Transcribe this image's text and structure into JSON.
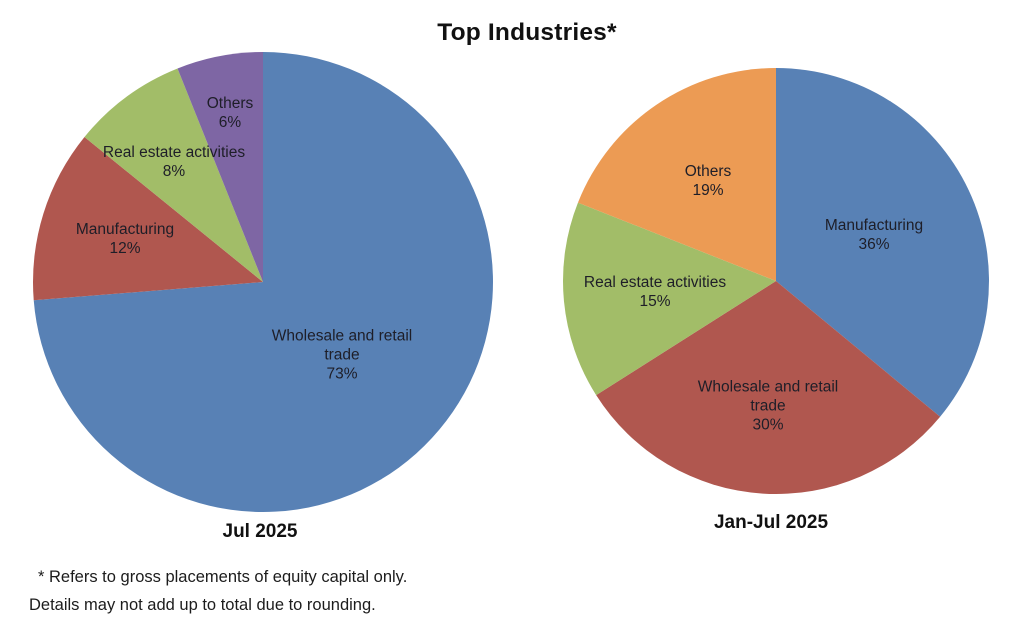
{
  "page": {
    "title": "Top Industries*",
    "footnote_line1": "* Refers to gross placements of equity capital only.",
    "footnote_line2": "Details may not add up to total due to rounding."
  },
  "colors": {
    "blue": "#5881B5",
    "red": "#B0574F",
    "green": "#A2BD68",
    "purple": "#7E66A4",
    "orange": "#EC9B54",
    "label_text": "#1e1e28",
    "title_text": "#111111"
  },
  "chart_data": [
    {
      "type": "pie",
      "title": "Jul 2025",
      "categories": [
        "Wholesale and retail trade",
        "Manufacturing",
        "Real estate activities",
        "Others"
      ],
      "values": [
        73,
        12,
        8,
        6
      ],
      "unit": "%",
      "colors": [
        "#5881B5",
        "#B0574F",
        "#A2BD68",
        "#7E66A4"
      ],
      "start_angle_deg": 0,
      "direction": "clockwise",
      "labels_position": "inside",
      "legend": "none"
    },
    {
      "type": "pie",
      "title": "Jan-Jul 2025",
      "categories": [
        "Manufacturing",
        "Wholesale and retail trade",
        "Real estate activities",
        "Others"
      ],
      "values": [
        36,
        30,
        15,
        19
      ],
      "unit": "%",
      "colors": [
        "#5881B5",
        "#B0574F",
        "#A2BD68",
        "#EC9B54"
      ],
      "start_angle_deg": 0,
      "direction": "clockwise",
      "labels_position": "inside",
      "legend": "none"
    }
  ]
}
